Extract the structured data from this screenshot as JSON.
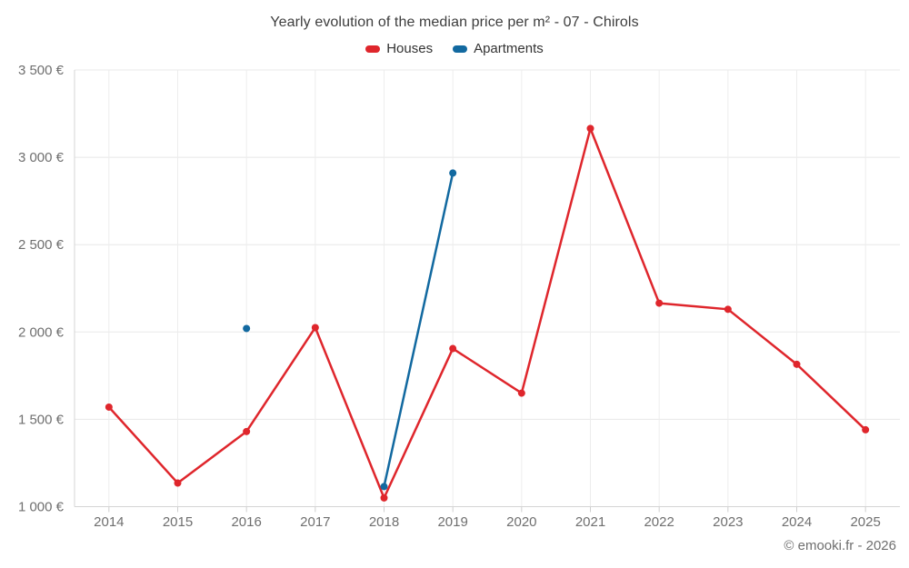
{
  "title": "Yearly evolution of the median price per m² - 07 - Chirols",
  "copyright": "© emooki.fr - 2026",
  "legend": {
    "items": [
      {
        "label": "Houses",
        "color": "#df262c"
      },
      {
        "label": "Apartments",
        "color": "#1269a0"
      }
    ]
  },
  "chart_data": {
    "type": "line",
    "title": "Yearly evolution of the median price per m² - 07 - Chirols",
    "categories": [
      "2014",
      "2015",
      "2016",
      "2017",
      "2018",
      "2019",
      "2020",
      "2021",
      "2022",
      "2023",
      "2024",
      "2025"
    ],
    "series": [
      {
        "name": "Houses",
        "color": "#df262c",
        "values": [
          1570,
          1135,
          1430,
          2025,
          1050,
          1905,
          1650,
          3165,
          2165,
          2130,
          1815,
          1440
        ]
      },
      {
        "name": "Apartments",
        "color": "#1269a0",
        "values": [
          null,
          null,
          2020,
          null,
          1115,
          2910,
          null,
          null,
          null,
          null,
          null,
          null
        ]
      }
    ],
    "xlabel": "",
    "ylabel": "",
    "ylim": [
      1000,
      3500
    ],
    "ytick_step": 500,
    "yticks": [
      "1 000 €",
      "1 500 €",
      "2 000 €",
      "2 500 €",
      "3 000 €",
      "3 500 €"
    ],
    "grid": true,
    "legend_position": "top",
    "colors": {
      "grid_h": "#e8e8e8",
      "grid_v": "#ededed",
      "axis": "#d4d4d4",
      "tick": "#cfcfcf",
      "label_text": "#6f6f6f",
      "title_text": "#3d3d3d"
    }
  }
}
